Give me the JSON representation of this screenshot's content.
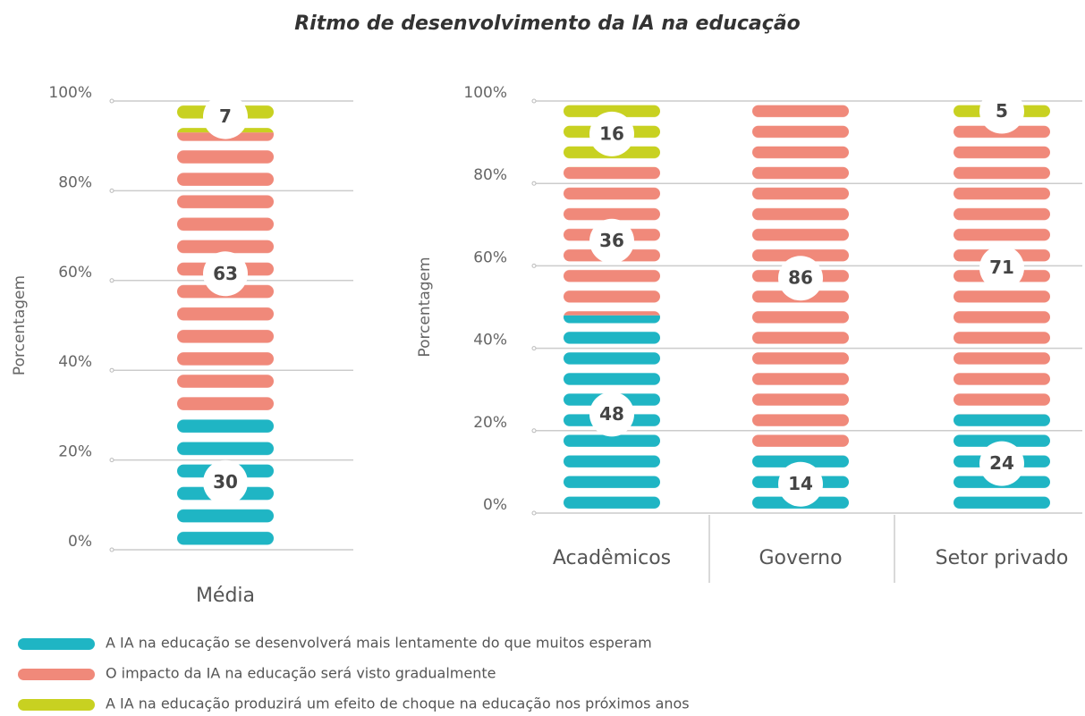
{
  "title": "Ritmo de desenvolvimento da IA na educação",
  "chart_data": [
    {
      "type": "bar",
      "stacked": true,
      "ylabel": "Porcentagem",
      "categories": [
        "Média"
      ],
      "series": [
        {
          "name": "A IA na educação se desenvolverá mais lentamente do que muitos esperam",
          "color": "#1fb5c4",
          "values": [
            30
          ]
        },
        {
          "name": "O impacto da IA na educação será visto gradualmente",
          "color": "#f0897a",
          "values": [
            63
          ]
        },
        {
          "name": "A IA na educação produzirá um efeito de choque na educação nos próximos anos",
          "color": "#c8d121",
          "values": [
            7
          ]
        }
      ],
      "ylim": [
        0,
        100
      ],
      "yticks": [
        {
          "value": 0,
          "label": "0%"
        },
        {
          "value": 20,
          "label": "20%"
        },
        {
          "value": 40,
          "label": "40%"
        },
        {
          "value": 60,
          "label": "60%"
        },
        {
          "value": 80,
          "label": "80%"
        },
        {
          "value": 100,
          "label": "100%"
        }
      ],
      "grid": true,
      "legend": "bottom-left"
    },
    {
      "type": "bar",
      "stacked": true,
      "ylabel": "Porcentagem",
      "categories": [
        "Acadêmicos",
        "Governo",
        "Setor privado"
      ],
      "series": [
        {
          "color": "#1fb5c4",
          "values": [
            48,
            14,
            24
          ]
        },
        {
          "color": "#f0897a",
          "values": [
            36,
            86,
            71
          ]
        },
        {
          "color": "#c8d121",
          "values": [
            16,
            0,
            5
          ]
        }
      ],
      "ylim": [
        0,
        100
      ],
      "yticks": [
        {
          "value": 0,
          "label": "0%"
        },
        {
          "value": 20,
          "label": "20%"
        },
        {
          "value": 40,
          "label": "40%"
        },
        {
          "value": 60,
          "label": "60%"
        },
        {
          "value": 80,
          "label": "80%"
        },
        {
          "value": 100,
          "label": "100%"
        }
      ],
      "grid": true
    }
  ]
}
